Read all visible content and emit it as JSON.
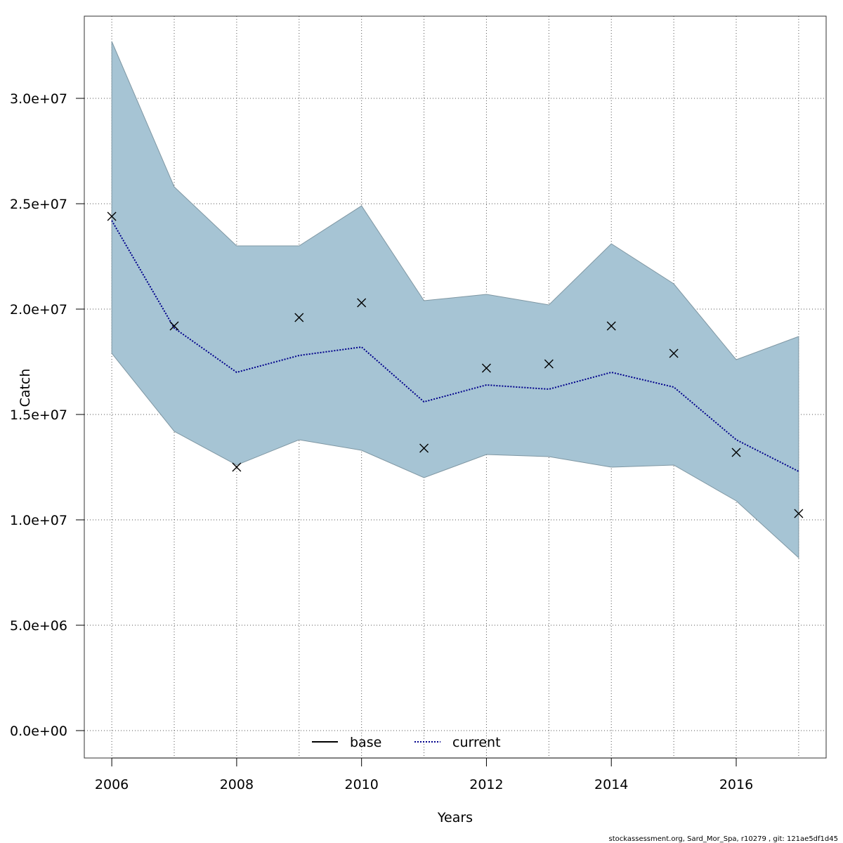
{
  "chart_data": {
    "type": "line",
    "xlabel": "Years",
    "ylabel": "Catch",
    "xlim": [
      2005.56,
      2017.44
    ],
    "ylim": [
      -1300000,
      33900000
    ],
    "x_ticks": [
      {
        "value": 2006,
        "label": "2006"
      },
      {
        "value": 2008,
        "label": "2008"
      },
      {
        "value": 2010,
        "label": "2010"
      },
      {
        "value": 2012,
        "label": "2012"
      },
      {
        "value": 2014,
        "label": "2014"
      },
      {
        "value": 2016,
        "label": "2016"
      }
    ],
    "y_ticks": [
      {
        "value": 0,
        "label": "0.0e+00"
      },
      {
        "value": 5000000,
        "label": "5.0e+06"
      },
      {
        "value": 10000000,
        "label": "1.0e+07"
      },
      {
        "value": 15000000,
        "label": "1.5e+07"
      },
      {
        "value": 20000000,
        "label": "2.0e+07"
      },
      {
        "value": 25000000,
        "label": "2.5e+07"
      },
      {
        "value": 30000000,
        "label": "3.0e+07"
      }
    ],
    "x_grid": [
      2006,
      2007,
      2008,
      2009,
      2010,
      2011,
      2012,
      2013,
      2014,
      2015,
      2016,
      2017
    ],
    "grid": true,
    "x": [
      2006,
      2007,
      2008,
      2009,
      2010,
      2011,
      2012,
      2013,
      2014,
      2015,
      2016,
      2017
    ],
    "band": {
      "lower": [
        17900000,
        14200000,
        12600000,
        13800000,
        13300000,
        12000000,
        13100000,
        13000000,
        12500000,
        12600000,
        10900000,
        8200000
      ],
      "upper": [
        32700000,
        25800000,
        23000000,
        23000000,
        24900000,
        20400000,
        20700000,
        20200000,
        23100000,
        21200000,
        17600000,
        18700000
      ],
      "color": "#a6c4d4"
    },
    "series": [
      {
        "name": "current",
        "style": "dotted",
        "color": "#00008b",
        "values": [
          24200000,
          19100000,
          17000000,
          17800000,
          18200000,
          15600000,
          16400000,
          16200000,
          17000000,
          16300000,
          13800000,
          12300000
        ]
      }
    ],
    "observed": {
      "marker": "x",
      "values": [
        24400000,
        19200000,
        12500000,
        19600000,
        20300000,
        13400000,
        17200000,
        17400000,
        19200000,
        17900000,
        13200000,
        10300000
      ]
    },
    "legend": {
      "placement": "bottom-center",
      "entries": [
        {
          "label": "base",
          "style": "solid",
          "color": "#000000"
        },
        {
          "label": "current",
          "style": "dotted",
          "color": "#00008b"
        }
      ]
    }
  },
  "footer": "stockassessment.org, Sard_Mor_Spa, r10279 , git: 121ae5df1d45"
}
